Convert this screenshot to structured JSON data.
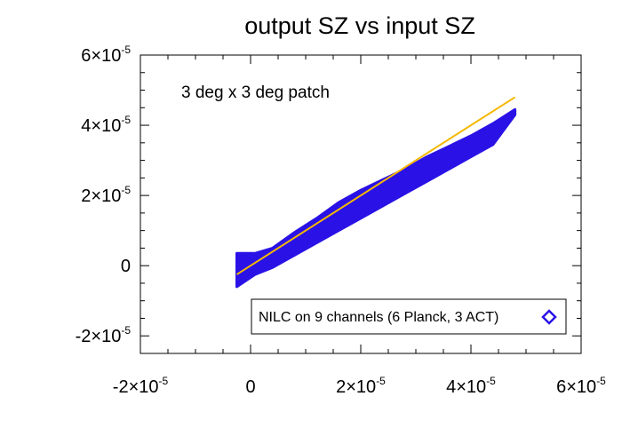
{
  "chart_data": {
    "type": "scatter",
    "title": "output SZ vs input SZ",
    "xlabel": "",
    "ylabel": "",
    "xlim": [
      -2e-05,
      6e-05
    ],
    "ylim": [
      -2.5e-05,
      6e-05
    ],
    "x_ticks": [
      {
        "value": -2e-05,
        "mantissa": "-2×10",
        "exp": "-5"
      },
      {
        "value": 0,
        "mantissa": "0",
        "exp": ""
      },
      {
        "value": 2e-05,
        "mantissa": "2×10",
        "exp": "-5"
      },
      {
        "value": 4e-05,
        "mantissa": "4×10",
        "exp": "-5"
      },
      {
        "value": 6e-05,
        "mantissa": "6×10",
        "exp": "-5"
      }
    ],
    "y_ticks": [
      {
        "value": -2e-05,
        "mantissa": "-2×10",
        "exp": "-5"
      },
      {
        "value": 0,
        "mantissa": "0",
        "exp": ""
      },
      {
        "value": 2e-05,
        "mantissa": "2×10",
        "exp": "-5"
      },
      {
        "value": 4e-05,
        "mantissa": "4×10",
        "exp": "-5"
      },
      {
        "value": 6e-05,
        "mantissa": "6×10",
        "exp": "-5"
      }
    ],
    "annotation": "3 deg x 3 deg patch",
    "grid": false,
    "legend_position": "bottom-right",
    "series": [
      {
        "name": "NILC on 9 channels (6 Planck, 3 ACT)",
        "marker": "diamond",
        "color": "#2a12e6",
        "band_x": [
          -2.5e-06,
          8e-07,
          4e-06,
          8e-06,
          1.2e-05,
          1.6e-05,
          2e-05,
          2.4e-05,
          2.8e-05,
          3.2e-05,
          3.6e-05,
          4e-05,
          4.4e-05,
          4.8e-05
        ],
        "band_y_low": [
          -6e-06,
          -2.5e-06,
          -5e-07,
          3e-06,
          6.5e-06,
          1e-05,
          1.35e-05,
          1.7e-05,
          2.05e-05,
          2.4e-05,
          2.75e-05,
          3.1e-05,
          3.45e-05,
          4.3e-05
        ],
        "band_y_high": [
          3.5e-06,
          3.5e-06,
          5e-06,
          9.5e-06,
          1.35e-05,
          1.8e-05,
          2.15e-05,
          2.45e-05,
          2.75e-05,
          3.1e-05,
          3.4e-05,
          3.7e-05,
          4.05e-05,
          4.45e-05
        ]
      },
      {
        "name": "",
        "type": "line",
        "color": "#f5b800",
        "x": [
          -2.5e-06,
          4.8e-05
        ],
        "y": [
          -2.5e-06,
          4.8e-05
        ]
      }
    ]
  }
}
